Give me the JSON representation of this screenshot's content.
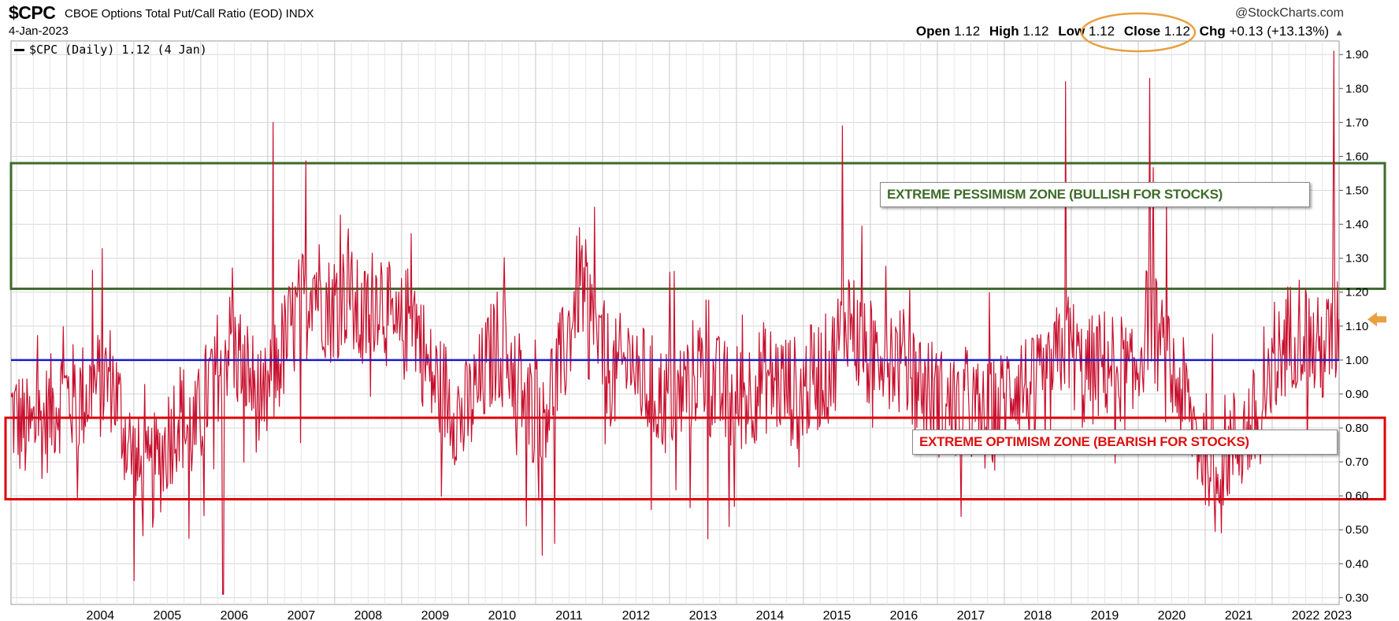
{
  "header": {
    "symbol": "$CPC",
    "name": "CBOE Options Total Put/Call Ratio (EOD)",
    "exchange": "INDX",
    "date": "4-Jan-2023",
    "credit": "@StockCharts.com",
    "open_label": "Open",
    "open": "1.12",
    "high_label": "High",
    "high": "1.12",
    "low_label": "Low",
    "low": "1.12",
    "close_label": "Close",
    "close": "1.12",
    "chg_label": "Chg",
    "chg": "+0.13 (+13.13%)",
    "up_arrow": "▲"
  },
  "legend": {
    "text": "$CPC (Daily) 1.12 (4 Jan)"
  },
  "annotations": {
    "pessimism_label": "EXTREME PESSIMISM ZONE (BULLISH FOR STOCKS)",
    "optimism_label": "EXTREME OPTIMISM ZONE (BEARISH FOR STOCKS)"
  },
  "colors": {
    "series": "#c8102e",
    "reference_line": "#1a1acc",
    "pessimism_zone": "#3e6b2a",
    "optimism_zone": "#e00000",
    "close_highlight": "#e8a040",
    "grid": "#d8d8d8"
  },
  "chart_data": {
    "type": "line",
    "title": "$CPC CBOE Options Total Put/Call Ratio (EOD)",
    "series": [
      {
        "name": "$CPC (Daily)",
        "x": [
          "2003-03",
          "2003-06",
          "2003-09",
          "2003-12",
          "2004-03",
          "2004-06",
          "2004-09",
          "2004-12",
          "2005-03",
          "2005-06",
          "2005-09",
          "2005-12",
          "2006-03",
          "2006-06",
          "2006-09",
          "2006-12",
          "2007-03",
          "2007-06",
          "2007-09",
          "2007-12",
          "2008-03",
          "2008-06",
          "2008-09",
          "2008-12",
          "2009-03",
          "2009-06",
          "2009-09",
          "2009-12",
          "2010-03",
          "2010-06",
          "2010-09",
          "2010-12",
          "2011-03",
          "2011-06",
          "2011-09",
          "2011-12",
          "2012-03",
          "2012-06",
          "2012-09",
          "2012-12",
          "2013-03",
          "2013-06",
          "2013-09",
          "2013-12",
          "2014-03",
          "2014-06",
          "2014-09",
          "2014-12",
          "2015-03",
          "2015-06",
          "2015-09",
          "2015-12",
          "2016-03",
          "2016-06",
          "2016-09",
          "2016-12",
          "2017-03",
          "2017-06",
          "2017-09",
          "2017-12",
          "2018-03",
          "2018-06",
          "2018-09",
          "2018-12",
          "2019-03",
          "2019-06",
          "2019-09",
          "2019-12",
          "2020-03",
          "2020-06",
          "2020-09",
          "2020-12",
          "2021-03",
          "2021-06",
          "2021-09",
          "2021-12",
          "2022-03",
          "2022-06",
          "2022-09",
          "2022-12",
          "2023-01"
        ],
        "values": [
          0.85,
          0.78,
          0.82,
          0.9,
          0.88,
          0.92,
          0.95,
          0.75,
          0.62,
          0.72,
          0.85,
          0.78,
          0.95,
          1.05,
          0.98,
          0.85,
          1.0,
          1.12,
          1.25,
          1.15,
          1.2,
          1.1,
          1.22,
          1.05,
          1.15,
          0.95,
          0.9,
          0.82,
          0.92,
          1.05,
          0.98,
          0.85,
          0.88,
          1.0,
          1.25,
          1.05,
          0.95,
          1.0,
          0.92,
          0.88,
          0.9,
          0.98,
          0.92,
          0.88,
          0.9,
          0.95,
          0.93,
          0.9,
          0.95,
          0.98,
          1.15,
          1.0,
          1.05,
          1.0,
          0.95,
          0.9,
          0.85,
          0.88,
          0.82,
          0.85,
          0.95,
          0.9,
          0.92,
          1.08,
          0.95,
          0.98,
          1.0,
          0.92,
          1.15,
          0.98,
          0.9,
          0.75,
          0.72,
          0.75,
          0.8,
          0.85,
          1.05,
          1.1,
          1.02,
          1.05,
          1.12
        ],
        "notable_spikes": [
          {
            "x": "2005-01",
            "value": 0.35
          },
          {
            "x": "2006-05",
            "value": 0.31
          },
          {
            "x": "2007-02",
            "value": 1.7
          },
          {
            "x": "2015-08",
            "value": 1.69
          },
          {
            "x": "2018-12",
            "value": 1.82
          },
          {
            "x": "2020-03",
            "value": 1.83
          },
          {
            "x": "2022-12",
            "value": 1.91
          }
        ]
      }
    ],
    "reference_line": {
      "value": 1.0
    },
    "zones": [
      {
        "name": "EXTREME PESSIMISM ZONE (BULLISH FOR STOCKS)",
        "low": 1.21,
        "high": 1.58
      },
      {
        "name": "EXTREME OPTIMISM ZONE (BEARISH FOR STOCKS)",
        "low": 0.59,
        "high": 0.83
      }
    ],
    "last_value": 1.12,
    "xlabel": "",
    "ylabel": "",
    "x_tick_labels": [
      "2004",
      "2005",
      "2006",
      "2007",
      "2008",
      "2009",
      "2010",
      "2011",
      "2012",
      "2013",
      "2014",
      "2015",
      "2016",
      "2017",
      "2018",
      "2019",
      "2020",
      "2021",
      "2022",
      "2023"
    ],
    "y_tick_labels": [
      "1.90",
      "1.80",
      "1.70",
      "1.60",
      "1.50",
      "1.40",
      "1.30",
      "1.20",
      "1.10",
      "1.00",
      "0.90",
      "0.80",
      "0.70",
      "0.60",
      "0.50",
      "0.40",
      "0.30"
    ],
    "ylim": [
      0.28,
      1.94
    ],
    "xlim": [
      "2003-03",
      "2023-01"
    ],
    "grid": true,
    "legend_position": "top-left"
  }
}
